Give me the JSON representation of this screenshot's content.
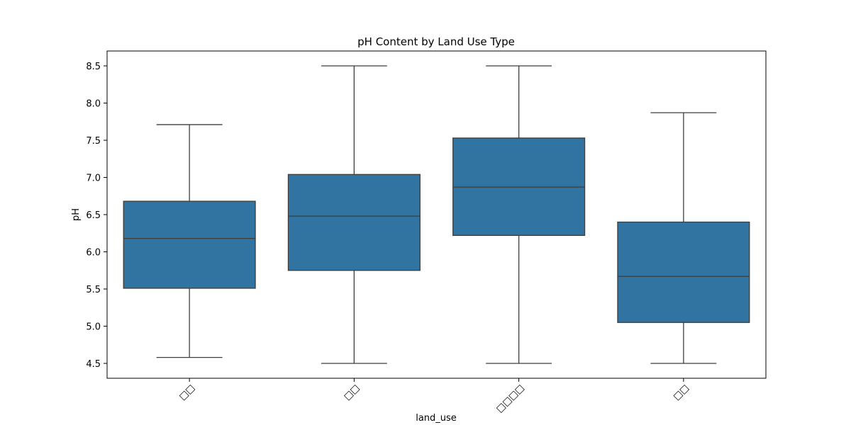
{
  "chart_data": {
    "type": "box",
    "title": "pH Content by Land Use Type",
    "xlabel": "land_use",
    "ylabel": "pH",
    "categories": [
      "□□",
      "□□",
      "□□□□",
      "□□"
    ],
    "ylim": [
      4.3,
      8.7
    ],
    "yticks": [
      4.5,
      5.0,
      5.5,
      6.0,
      6.5,
      7.0,
      7.5,
      8.0,
      8.5
    ],
    "grid": false,
    "box_color": "#3274a1",
    "line_color": "#3d3d3d",
    "boxes": [
      {
        "whisker_low": 4.58,
        "q1": 5.51,
        "median": 6.18,
        "q3": 6.68,
        "whisker_high": 7.71
      },
      {
        "whisker_low": 4.5,
        "q1": 5.75,
        "median": 6.48,
        "q3": 7.04,
        "whisker_high": 8.5
      },
      {
        "whisker_low": 4.5,
        "q1": 6.22,
        "median": 6.87,
        "q3": 7.53,
        "whisker_high": 8.5
      },
      {
        "whisker_low": 4.5,
        "q1": 5.05,
        "median": 5.67,
        "q3": 6.4,
        "whisker_high": 7.87
      }
    ]
  }
}
